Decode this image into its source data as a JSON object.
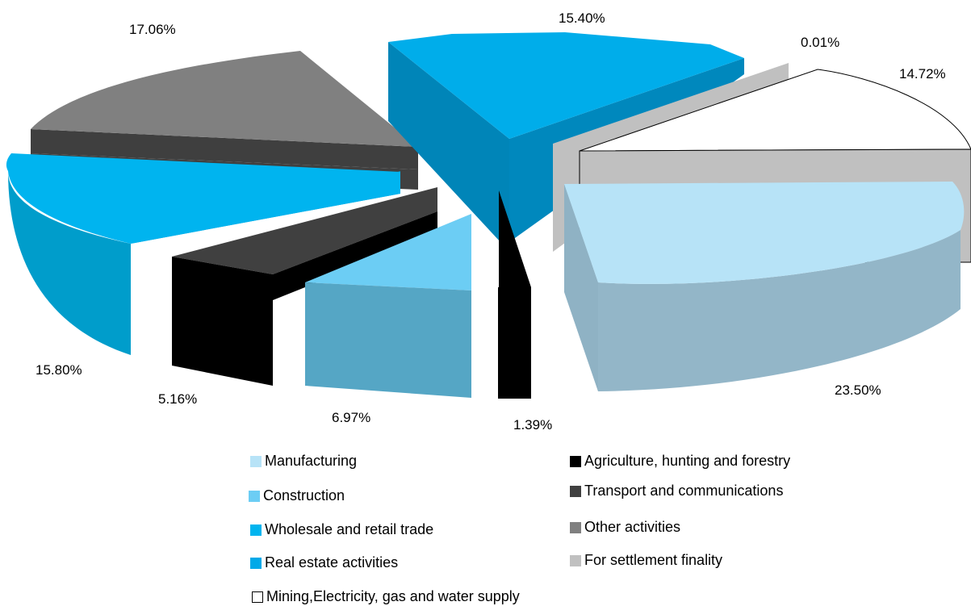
{
  "chart_data": {
    "type": "pie",
    "title": "",
    "slices": [
      {
        "name": "Manufacturing",
        "value": 23.5,
        "label": "23.50%",
        "color": "#b7e3f7"
      },
      {
        "name": "Construction",
        "value": 6.97,
        "label": "6.97%",
        "color": "#6ccdf4"
      },
      {
        "name": "Wholesale and retail trade",
        "value": 15.8,
        "label": "15.80%",
        "color": "#00b4ef"
      },
      {
        "name": "Real estate activities",
        "value": 15.4,
        "label": "15.40%",
        "color": "#00a9e8"
      },
      {
        "name": "Mining,Electricity, gas and water supply",
        "value": 14.72,
        "label": "14.72%",
        "color": "#ffffff"
      },
      {
        "name": "Agriculture, hunting and forestry",
        "value": 1.39,
        "label": "1.39%",
        "color": "#000000"
      },
      {
        "name": "Transport and communications",
        "value": 5.16,
        "label": "5.16%",
        "color": "#404040"
      },
      {
        "name": "Other activities",
        "value": 17.06,
        "label": "17.06%",
        "color": "#808080"
      },
      {
        "name": "For settlement finality",
        "value": 0.01,
        "label": "0.01%",
        "color": "#c0c0c0"
      }
    ],
    "legend_position": "bottom"
  }
}
